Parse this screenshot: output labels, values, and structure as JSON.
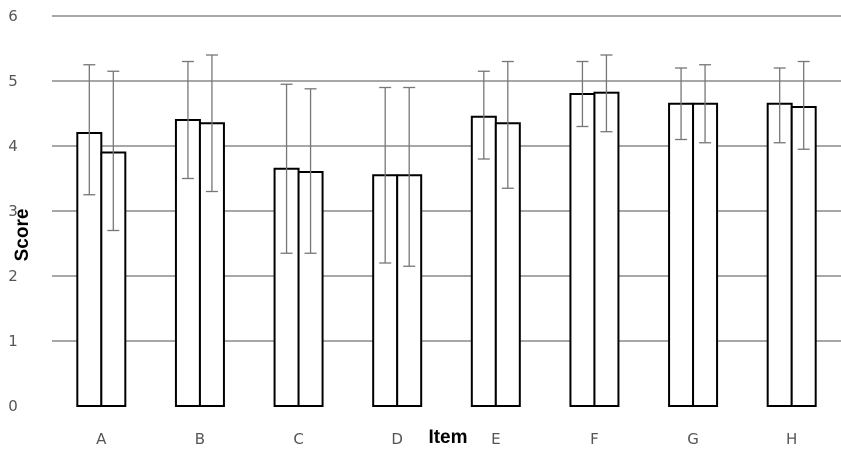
{
  "chart_data": {
    "type": "bar",
    "categories": [
      "A",
      "B",
      "C",
      "D",
      "E",
      "F",
      "G",
      "H"
    ],
    "series": [
      {
        "values": [
          4.2,
          4.4,
          3.65,
          3.55,
          4.45,
          4.8,
          4.65,
          4.65
        ],
        "error_low": [
          3.25,
          3.5,
          2.35,
          2.2,
          3.8,
          4.3,
          4.1,
          4.05
        ],
        "error_high": [
          5.25,
          5.3,
          4.95,
          4.9,
          5.15,
          5.3,
          5.2,
          5.2
        ]
      },
      {
        "values": [
          3.9,
          4.35,
          3.6,
          3.55,
          4.35,
          4.82,
          4.65,
          4.6
        ],
        "error_low": [
          2.7,
          3.3,
          2.35,
          2.15,
          3.35,
          4.22,
          4.05,
          3.95
        ],
        "error_high": [
          5.15,
          5.4,
          4.88,
          4.9,
          5.3,
          5.4,
          5.25,
          5.3
        ]
      }
    ],
    "xlabel": "Item",
    "ylabel": "Score",
    "ylim": [
      0,
      6
    ],
    "yticks": [
      "0",
      "1",
      "2",
      "3",
      "4",
      "5",
      "6"
    ],
    "grid": true,
    "colors": {
      "bar_fill": "#ffffff",
      "bar_stroke": "#000000",
      "grid": "#8a8a8a",
      "error_bar": "#777777"
    }
  }
}
